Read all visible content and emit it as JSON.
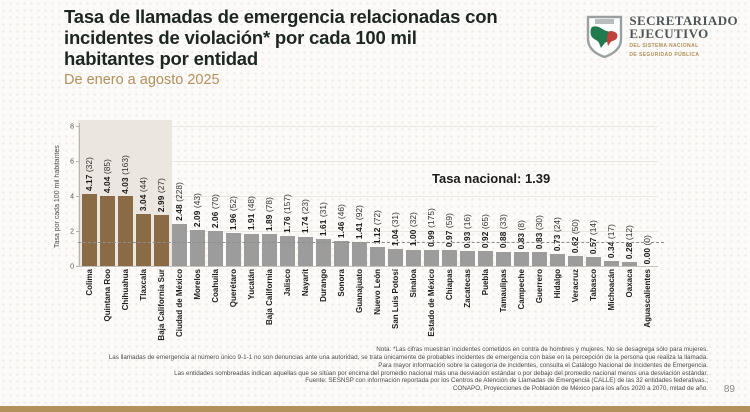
{
  "header": {
    "title_lines": [
      "Tasa de llamadas de emergencia relacionadas con",
      "incidentes de violación* por cada 100 mil",
      "habitantes por entidad"
    ],
    "subtitle": "De enero a agosto 2025"
  },
  "logo": {
    "line1": "SECRETARIADO",
    "line2": "EJECUTIVO",
    "sub1": "DEL SISTEMA NACIONAL",
    "sub2": "DE SEGURIDAD PÚBLICA"
  },
  "chart_data": {
    "type": "bar",
    "title": "Tasa de llamadas de emergencia relacionadas con incidentes de violación* por cada 100 mil habitantes por entidad, enero a agosto 2025",
    "ylabel": "Tasa por cada 100 mil habitantes",
    "ylim": [
      0,
      8
    ],
    "yticks": [
      0,
      2,
      4,
      6,
      8
    ],
    "grid": true,
    "national_rate": 1.39,
    "national_rate_label": "Tasa nacional: 1.39",
    "highlighted_count": 5,
    "highlight_color": "#8a6b45",
    "bar_color": "#9c9c9c",
    "shade_color": "#ebe6df",
    "categories": [
      "Colima",
      "Quintana Roo",
      "Chihuahua",
      "Tlaxcala",
      "Baja California Sur",
      "Ciudad de México",
      "Morelos",
      "Coahuila",
      "Querétaro",
      "Yucatán",
      "Baja California",
      "Jalisco",
      "Nayarit",
      "Durango",
      "Sonora",
      "Guanajuato",
      "Nuevo León",
      "San Luis Potosí",
      "Sinaloa",
      "Estado de México",
      "Chiapas",
      "Zacatecas",
      "Puebla",
      "Tamaulipas",
      "Campeche",
      "Guerrero",
      "Hidalgo",
      "Veracruz",
      "Tabasco",
      "Michoacán",
      "Oaxaca",
      "Aguascalientes"
    ],
    "values": [
      4.17,
      4.04,
      4.03,
      3.04,
      2.99,
      2.48,
      2.09,
      2.06,
      1.96,
      1.91,
      1.89,
      1.76,
      1.74,
      1.61,
      1.46,
      1.41,
      1.12,
      1.04,
      1.0,
      0.99,
      0.97,
      0.93,
      0.92,
      0.88,
      0.83,
      0.83,
      0.73,
      0.62,
      0.57,
      0.34,
      0.28,
      0.0
    ],
    "counts": [
      32,
      85,
      163,
      44,
      27,
      228,
      43,
      70,
      52,
      48,
      78,
      157,
      23,
      31,
      46,
      92,
      72,
      31,
      32,
      175,
      59,
      16,
      65,
      33,
      8,
      30,
      24,
      50,
      14,
      17,
      12,
      0
    ]
  },
  "footnotes": [
    "Nota: *Las cifras muestran incidentes cometidos en contra de hombres y mujeres. No se desagrega sólo para mujeres.",
    "Las llamadas de emergencia al número único 9-1-1 no son denuncias ante una autoridad, se trata únicamente de probables incidentes de emergencia con base en la percepción de la persona que realiza la llamada.",
    "Para mayor información sobre la categoría de incidentes, consulta el Catálogo Nacional de Incidentes de Emergencia.",
    "Las entidades sombreadas indican aquellas que se sitúan por encima del promedio nacional más una desviación estándar o por debajo del promedio nacional menos una desviación estándar.",
    "Fuente: SESNSP con información reportada por los Centros de Atención de Llamadas de Emergencia (CALLE) de las 32 entidades federativas.;",
    "CONAPO, Proyecciones de Población de México para los años 2020 a 2070, mitad de año."
  ],
  "page_number": "89"
}
